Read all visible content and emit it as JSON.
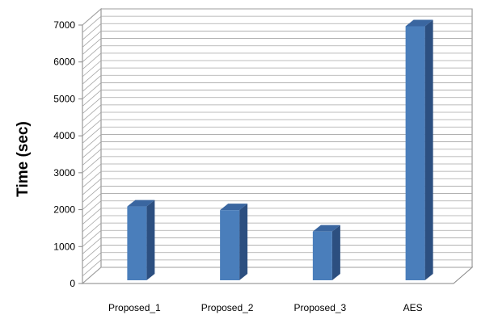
{
  "chart_data": {
    "type": "bar",
    "title": "",
    "xlabel": "",
    "ylabel": "Time (sec)",
    "categories": [
      "Proposed_1",
      "Proposed_2",
      "Proposed_3",
      "AES"
    ],
    "values": [
      2000,
      1900,
      1320,
      6880
    ],
    "ylim": [
      0,
      7000
    ],
    "yticks": [
      "0",
      "1000",
      "2000",
      "3000",
      "4000",
      "5000",
      "6000",
      "7000"
    ],
    "grid": true,
    "legend": "none",
    "colors": {
      "bar_front": "#4a7ebb",
      "bar_side": "#2c4f80",
      "bar_top": "#3a66a0",
      "grid": "#a6a6a6",
      "axis": "#868686"
    }
  }
}
